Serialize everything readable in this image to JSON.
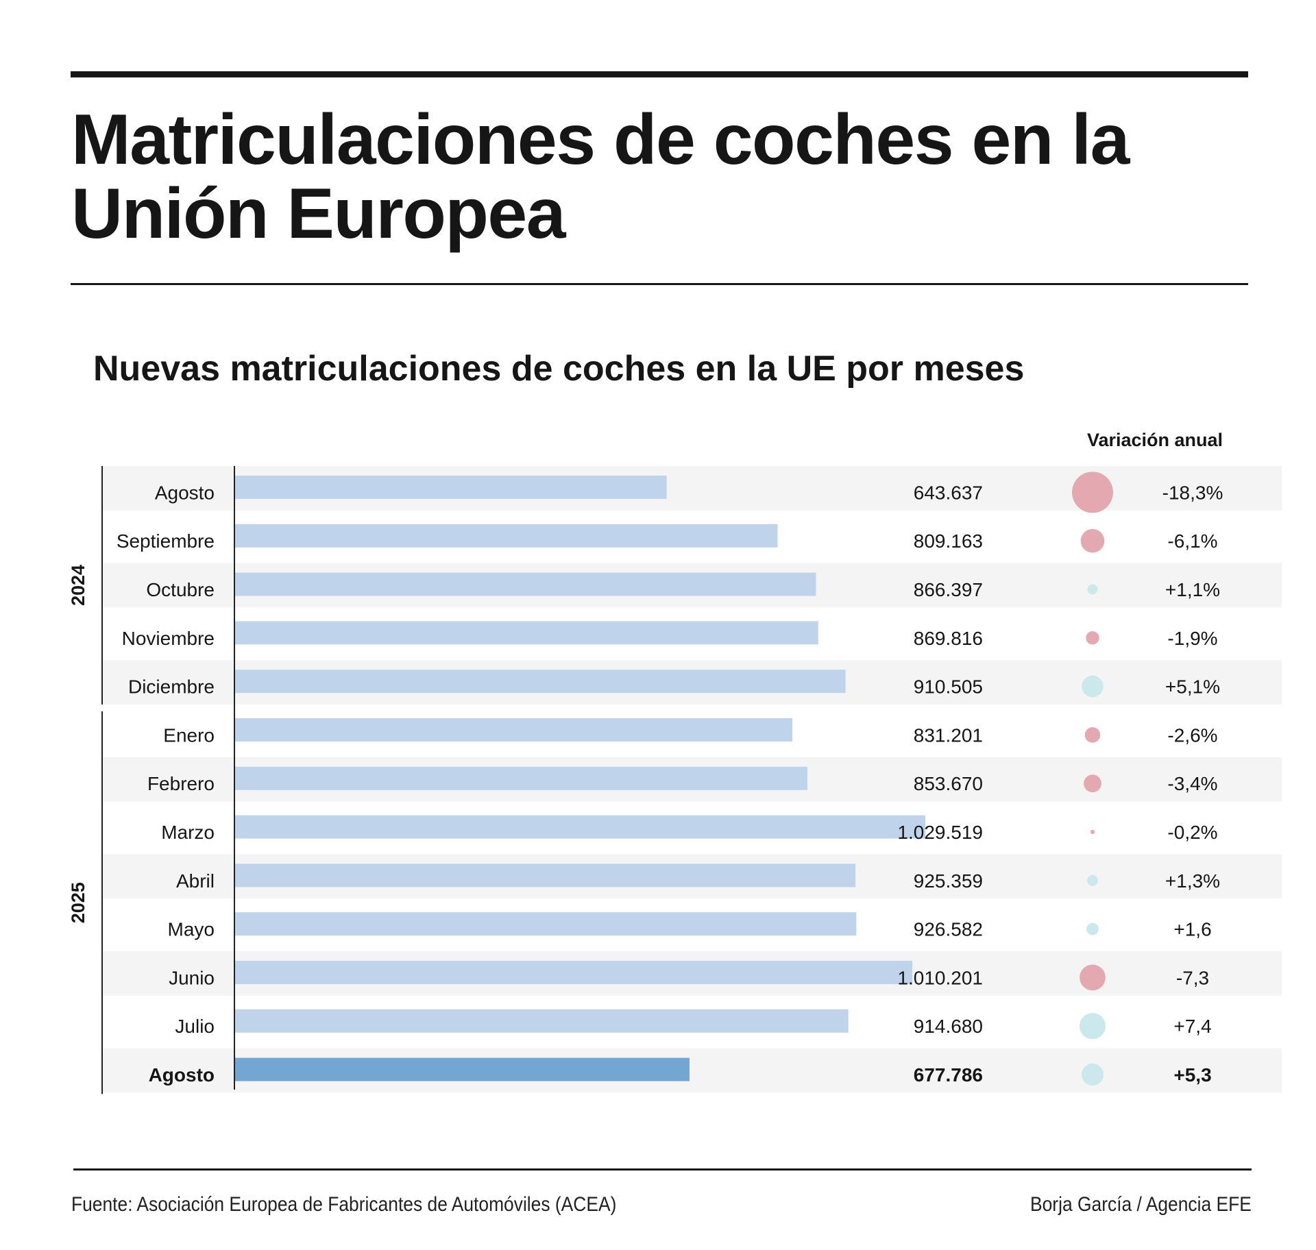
{
  "header": {
    "title": "Matriculaciones de coches en la Unión Europea"
  },
  "colors": {
    "bar": "#bfd4ea",
    "bar_highlight": "#74a6d2",
    "positive_bubble": "#cbe9ec",
    "negative_bubble": "#e4a9b0",
    "row_stripe": "#f4f4f4",
    "rule": "#161616"
  },
  "chart_data": {
    "type": "bar",
    "orientation": "horizontal",
    "title": "Nuevas matriculaciones de coches en la UE por meses",
    "variation_header": "Variación anual",
    "groups": [
      {
        "label": "2024",
        "from": 0,
        "to": 4
      },
      {
        "label": "2025",
        "from": 5,
        "to": 12
      }
    ],
    "categories": [
      "Agosto",
      "Septiembre",
      "Octubre",
      "Noviembre",
      "Diciembre",
      "Enero",
      "Febrero",
      "Marzo",
      "Abril",
      "Mayo",
      "Junio",
      "Julio",
      "Agosto"
    ],
    "values": [
      643637,
      809163,
      866397,
      869816,
      910505,
      831201,
      853670,
      1029519,
      925359,
      926582,
      1010201,
      914680,
      677786
    ],
    "value_labels": [
      "643.637",
      "809.163",
      "866.397",
      "869.816",
      "910.505",
      "831.201",
      "853.670",
      "1.029.519",
      "925.359",
      "926.582",
      "1.010.201",
      "914.680",
      "677.786"
    ],
    "variation": [
      -18.3,
      -6.1,
      1.1,
      -1.9,
      5.1,
      -2.6,
      -3.4,
      -0.2,
      1.3,
      1.6,
      -7.3,
      7.4,
      5.3
    ],
    "variation_labels": [
      "-18,3%",
      "-6,1%",
      "+1,1%",
      "-1,9%",
      "+5,1%",
      "-2,6%",
      "-3,4%",
      "-0,2%",
      "+1,3%",
      "+1,6",
      "-7,3",
      "+7,4",
      "+5,3"
    ],
    "highlight_index": 12,
    "xlim": [
      0,
      1029519
    ],
    "grid": false,
    "legend": "none"
  },
  "footer": {
    "source": "Fuente: Asociación Europea de Fabricantes de Automóviles (ACEA)",
    "credit": "Borja García / Agencia EFE"
  }
}
